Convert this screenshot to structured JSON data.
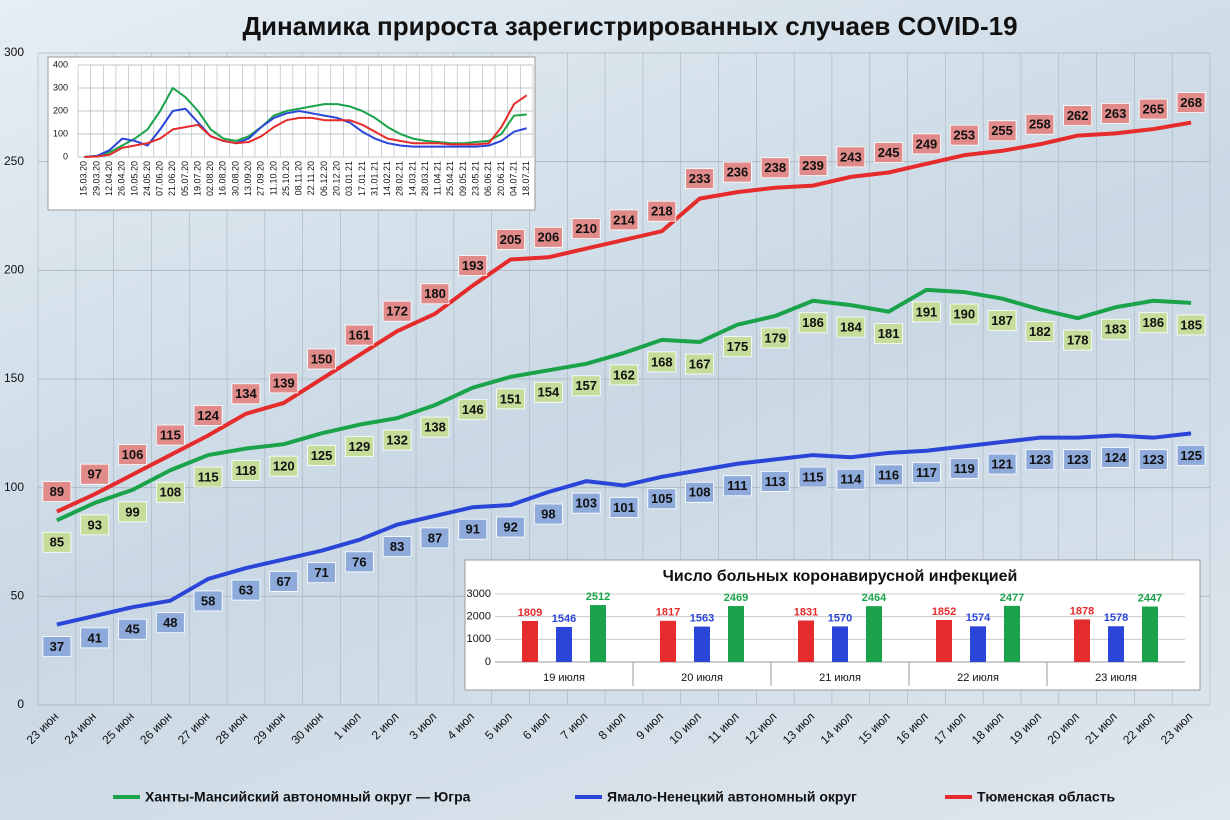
{
  "chart_data": [
    {
      "type": "line",
      "title": "Динамика прироста зарегистрированных случаев COVID-19",
      "categories": [
        "23 июн",
        "24 июн",
        "25 июн",
        "26 июн",
        "27 июн",
        "28 июн",
        "29 июн",
        "30 июн",
        "1 июл",
        "2 июл",
        "3 июл",
        "4 июл",
        "5 июл",
        "6 июл",
        "7 июл",
        "8 июл",
        "9 июл",
        "10 июл",
        "11 июл",
        "12 июл",
        "13 июл",
        "14 июл",
        "15 июл",
        "16 июл",
        "17 июл",
        "18 июл",
        "19 июл",
        "20 июл",
        "21 июл",
        "22 июл",
        "23 июл"
      ],
      "series": [
        {
          "name": "Ханты-Мансийский автономный округ — Югра",
          "color": "#1aa34a",
          "label_color": "#c6dc9a",
          "label_side": "below",
          "values": [
            85,
            93,
            99,
            108,
            115,
            118,
            120,
            125,
            129,
            132,
            138,
            146,
            151,
            154,
            157,
            162,
            168,
            167,
            175,
            179,
            186,
            184,
            181,
            191,
            190,
            187,
            182,
            178,
            183,
            186,
            185
          ]
        },
        {
          "name": "Ямало-Ненецкий автономный округ",
          "color": "#2b45d8",
          "label_color": "#8eaadb",
          "label_side": "below",
          "values": [
            37,
            41,
            45,
            48,
            58,
            63,
            67,
            71,
            76,
            83,
            87,
            91,
            92,
            98,
            103,
            101,
            105,
            108,
            111,
            113,
            115,
            114,
            116,
            117,
            119,
            121,
            123,
            123,
            124,
            123,
            125
          ]
        },
        {
          "name": "Тюменская область",
          "color": "#e52b2b",
          "label_color": "#e08a8a",
          "label_side": "above",
          "values": [
            89,
            97,
            106,
            115,
            124,
            134,
            139,
            150,
            161,
            172,
            180,
            193,
            205,
            206,
            210,
            214,
            218,
            233,
            236,
            238,
            239,
            243,
            245,
            249,
            253,
            255,
            258,
            262,
            263,
            265,
            268
          ]
        }
      ],
      "ylim": [
        0,
        300
      ],
      "yticks": [
        0,
        50,
        100,
        150,
        200,
        250,
        300
      ],
      "grid": true,
      "legend": "bottom"
    },
    {
      "type": "line",
      "categories": [
        "15.03.20",
        "29.03.20",
        "12.04.20",
        "26.04.20",
        "10.05.20",
        "24.05.20",
        "07.06.20",
        "21.06.20",
        "05.07.20",
        "19.07.20",
        "02.08.20",
        "16.08.20",
        "30.08.20",
        "13.09.20",
        "27.09.20",
        "11.10.20",
        "25.10.20",
        "08.11.20",
        "22.11.20",
        "06.12.20",
        "20.12.20",
        "03.01.21",
        "17.01.21",
        "31.01.21",
        "14.02.21",
        "28.02.21",
        "14.03.21",
        "28.03.21",
        "11.04.21",
        "25.04.21",
        "09.05.21",
        "23.05.21",
        "06.06.21",
        "20.06.21",
        "04.07.21",
        "18.07.21"
      ],
      "series": [
        {
          "color": "#1aa34a",
          "values": [
            0,
            5,
            20,
            50,
            80,
            120,
            200,
            300,
            260,
            200,
            120,
            80,
            70,
            90,
            130,
            180,
            200,
            210,
            220,
            230,
            230,
            220,
            200,
            170,
            130,
            100,
            80,
            70,
            65,
            60,
            60,
            65,
            70,
            100,
            180,
            185
          ]
        },
        {
          "color": "#2b45d8",
          "values": [
            0,
            5,
            30,
            80,
            70,
            50,
            120,
            200,
            210,
            150,
            90,
            70,
            60,
            80,
            130,
            170,
            190,
            200,
            190,
            180,
            170,
            150,
            110,
            80,
            60,
            50,
            45,
            45,
            45,
            45,
            45,
            45,
            50,
            70,
            110,
            125
          ]
        },
        {
          "color": "#e52b2b",
          "values": [
            0,
            2,
            10,
            40,
            50,
            60,
            80,
            120,
            130,
            140,
            90,
            70,
            60,
            65,
            90,
            130,
            160,
            170,
            170,
            160,
            160,
            160,
            140,
            110,
            80,
            70,
            60,
            60,
            60,
            55,
            55,
            55,
            60,
            130,
            230,
            268
          ]
        }
      ],
      "ylim": [
        0,
        400
      ],
      "yticks": [
        0,
        100,
        200,
        300,
        400
      ],
      "grid": true
    },
    {
      "type": "bar",
      "title": "Число больных коронавирусной инфекцией",
      "categories": [
        "19 июля",
        "20 июля",
        "21 июля",
        "22 июля",
        "23 июля"
      ],
      "series": [
        {
          "color": "#e52b2b",
          "values": [
            1809,
            1817,
            1831,
            1852,
            1878
          ]
        },
        {
          "color": "#2b45d8",
          "values": [
            1546,
            1563,
            1570,
            1574,
            1578
          ]
        },
        {
          "color": "#1aa34a",
          "values": [
            2512,
            2469,
            2464,
            2477,
            2447
          ]
        }
      ],
      "ylim": [
        0,
        3000
      ],
      "yticks": [
        0,
        1000,
        2000,
        3000
      ],
      "grid": true
    }
  ]
}
